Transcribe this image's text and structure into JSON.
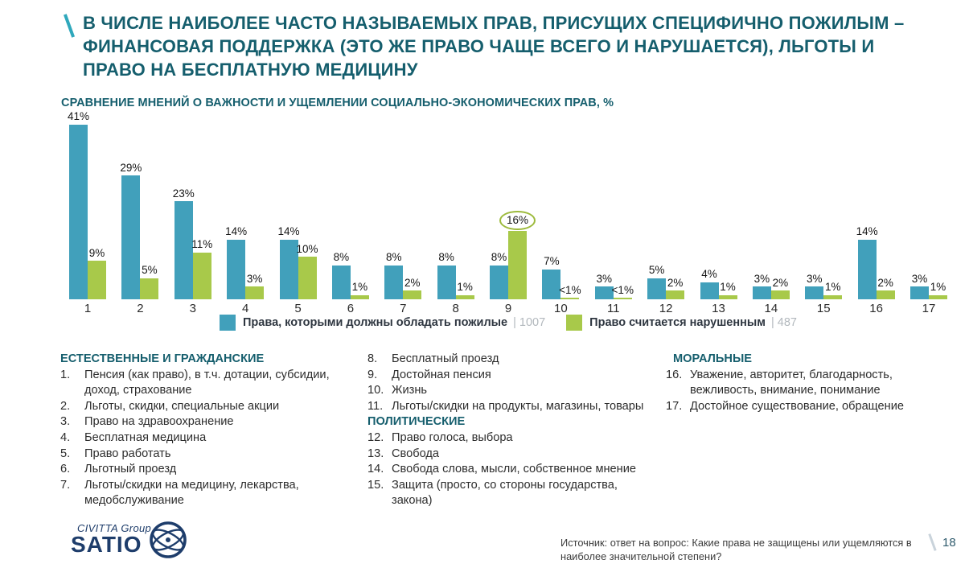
{
  "slide": {
    "title": "В ЧИСЛЕ НАИБОЛЕЕ ЧАСТО НАЗЫВАЕМЫХ ПРАВ, ПРИСУЩИХ СПЕЦИФИЧНО ПОЖИЛЫМ – ФИНАНСОВАЯ ПОДДЕРЖКА (ЭТО ЖЕ ПРАВО ЧАЩЕ ВСЕГО И НАРУШАЕТСЯ), ЛЬГОТЫ И ПРАВО НА БЕСПЛАТНУЮ МЕДИЦИНУ",
    "accent_mark": "\\"
  },
  "chart_data": {
    "type": "bar",
    "title": "СРАВНЕНИЕ МНЕНИЙ О ВАЖНОСТИ И УЩЕМЛЕНИИ СОЦИАЛЬНО-ЭКОНОМИЧЕСКИХ ПРАВ, %",
    "categories": [
      "1",
      "2",
      "3",
      "4",
      "5",
      "6",
      "7",
      "8",
      "9",
      "10",
      "11",
      "12",
      "13",
      "14",
      "15",
      "16",
      "17"
    ],
    "series": [
      {
        "name": "Права, которыми должны обладать пожилые",
        "n": "1007",
        "color": "#41A0BB",
        "values": [
          41,
          29,
          23,
          14,
          14,
          8,
          8,
          8,
          8,
          7,
          3,
          5,
          4,
          3,
          3,
          14,
          3
        ],
        "labels": [
          "41%",
          "29%",
          "23%",
          "14%",
          "14%",
          "8%",
          "8%",
          "8%",
          "8%",
          "7%",
          "3%",
          "5%",
          "4%",
          "3%",
          "3%",
          "14%",
          "3%"
        ]
      },
      {
        "name": "Право считается нарушенным",
        "n": "487",
        "color": "#A8C94A",
        "values": [
          9,
          5,
          11,
          3,
          10,
          1,
          2,
          1,
          16,
          0.3,
          0.3,
          2,
          1,
          2,
          1,
          2,
          1
        ],
        "labels": [
          "9%",
          "5%",
          "11%",
          "3%",
          "10%",
          "1%",
          "2%",
          "1%",
          "16%",
          "<1%",
          "<1%",
          "2%",
          "1%",
          "2%",
          "1%",
          "2%",
          "1%"
        ]
      }
    ],
    "highlight": {
      "series": 1,
      "index": 8,
      "style": "green-ellipse-around-label"
    },
    "ylim": [
      0,
      45
    ],
    "grid": false,
    "legend_position": "bottom"
  },
  "legend": {
    "items": [
      {
        "label": "Права, которыми должны обладать пожилые",
        "count_text": "| 1007",
        "color": "#41A0BB"
      },
      {
        "label": "Право считается нарушенным",
        "count_text": "| 487",
        "color": "#A8C94A"
      }
    ]
  },
  "rights_lists": {
    "natural_civil": {
      "header": "ЕСТЕСТВЕННЫЕ И ГРАЖДАНСКИЕ",
      "items": [
        {
          "num": "1.",
          "text": "Пенсия (как право), в т.ч. дотации, субсидии, доход, страхование"
        },
        {
          "num": "2.",
          "text": "Льготы, скидки, специальные акции"
        },
        {
          "num": "3.",
          "text": "Право на здравоохранение"
        },
        {
          "num": "4.",
          "text": "Бесплатная медицина"
        },
        {
          "num": "5.",
          "text": "Право работать"
        },
        {
          "num": "6.",
          "text": "Льготный проезд"
        },
        {
          "num": "7.",
          "text": "Льготы/скидки на медицину, лекарства, медобслуживание"
        }
      ]
    },
    "natural_civil_cont": {
      "items": [
        {
          "num": "8.",
          "text": "Бесплатный проезд"
        },
        {
          "num": "9.",
          "text": "Достойная пенсия"
        },
        {
          "num": "10.",
          "text": "Жизнь"
        },
        {
          "num": "11.",
          "text": "Льготы/скидки на продукты, магазины, товары"
        }
      ]
    },
    "political": {
      "header": "ПОЛИТИЧЕСКИЕ",
      "items": [
        {
          "num": "12.",
          "text": "Право голоса, выбора"
        },
        {
          "num": "13.",
          "text": "Свобода"
        },
        {
          "num": "14.",
          "text": "Свобода слова, мысли, собственное мнение"
        },
        {
          "num": "15.",
          "text": "Защита (просто, со стороны государства, закона)"
        }
      ]
    },
    "moral": {
      "header": "МОРАЛЬНЫЕ",
      "items": [
        {
          "num": "16.",
          "text": "Уважение, авторитет, благодарность, вежливость, внимание, понимание"
        },
        {
          "num": "17.",
          "text": "Достойное существование, обращение"
        }
      ]
    }
  },
  "footer": {
    "logo_top": "CIVITTA Group",
    "logo_main": "SATIO",
    "source_line1": "Источник: ответ на вопрос: Какие права не защищены или ущемляются в",
    "source_line2": "наиболее значительной степени?",
    "page_number": "18"
  },
  "colors": {
    "title_teal": "#155E6D",
    "accent_slash": "#2FA8BC",
    "bar_blue": "#41A0BB",
    "bar_green": "#A8C94A",
    "highlight_ring": "#9CBA3B",
    "logo_navy": "#1E3D6B"
  }
}
